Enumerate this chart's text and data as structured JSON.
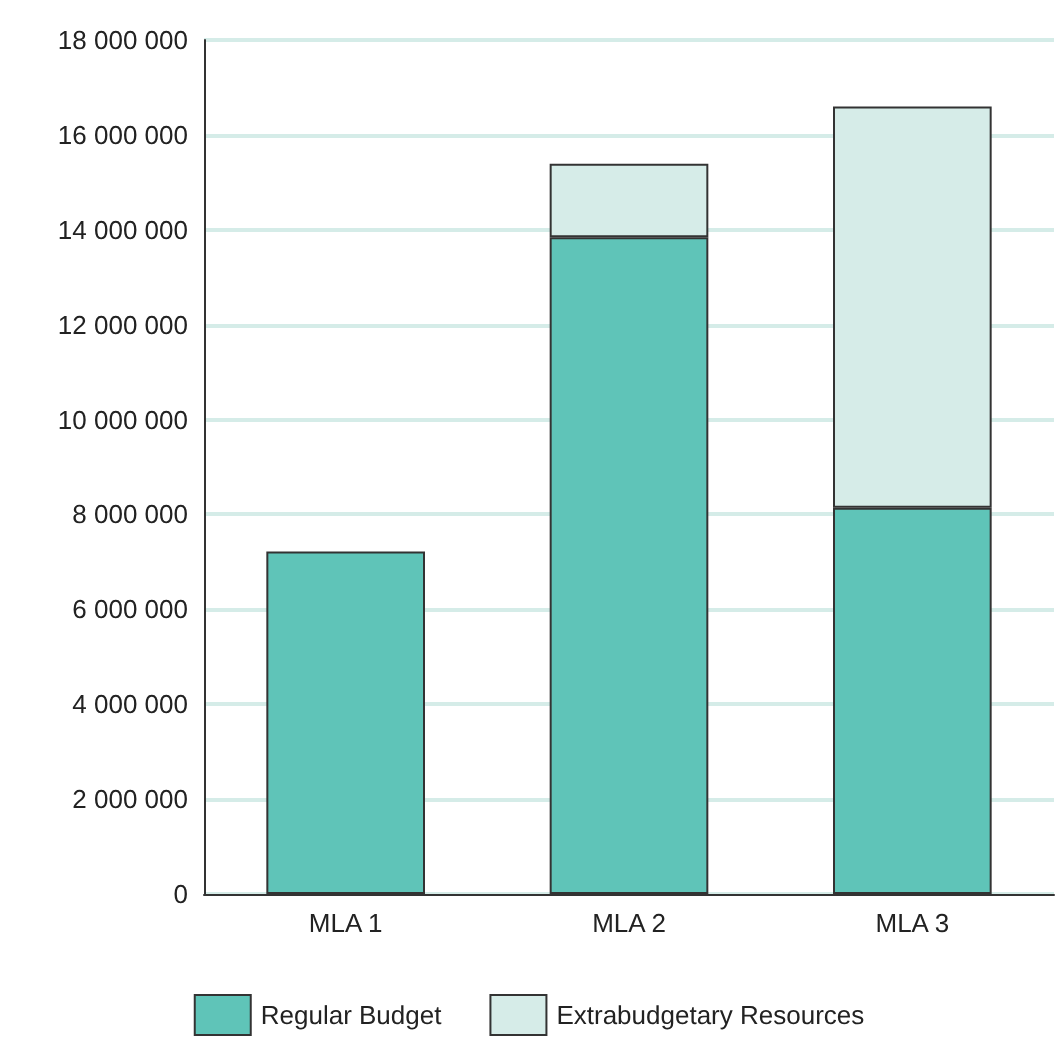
{
  "chart_data": {
    "type": "bar",
    "categories": [
      "MLA 1",
      "MLA 2",
      "MLA 3"
    ],
    "stacked": true,
    "series": [
      {
        "name": "Regular Budget",
        "color": "#5fc4b8",
        "values": [
          7220000,
          13840000,
          8140000
        ]
      },
      {
        "name": "Extrabudgetary Resources",
        "color": "#d6ece8",
        "values": [
          null,
          1550000,
          8460000
        ]
      }
    ],
    "ylim": [
      0,
      18000000
    ],
    "yticks": [
      0,
      2000000,
      4000000,
      6000000,
      8000000,
      10000000,
      12000000,
      14000000,
      16000000,
      18000000
    ],
    "grid": "y",
    "legend": "bottom"
  }
}
